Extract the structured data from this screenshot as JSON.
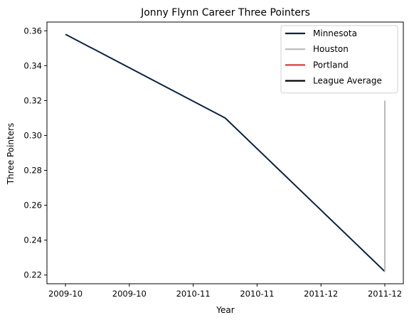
{
  "chart_data": {
    "type": "line",
    "title": "Jonny Flynn Career Three Pointers",
    "xlabel": "Year",
    "ylabel": "Three Pointers",
    "x_ticks": [
      "2009-10",
      "2009-10",
      "2010-11",
      "2010-11",
      "2011-12",
      "2011-12"
    ],
    "x_range": [
      0,
      1
    ],
    "ylim": [
      0.215,
      0.365
    ],
    "y_ticks": [
      "0.22",
      "0.24",
      "0.26",
      "0.28",
      "0.30",
      "0.32",
      "0.34",
      "0.36"
    ],
    "y_tick_values": [
      0.22,
      0.24,
      0.26,
      0.28,
      0.3,
      0.32,
      0.34,
      0.36
    ],
    "grid": false,
    "legend_position": "top-right",
    "series": [
      {
        "name": "Minnesota",
        "color": "#0c2340",
        "points": [
          {
            "x": 0.0,
            "y": 0.358
          },
          {
            "x": 0.5,
            "y": 0.31
          },
          {
            "x": 1.0,
            "y": 0.222
          }
        ]
      },
      {
        "name": "Houston",
        "color": "#bababa",
        "points": [
          {
            "x": 1.0,
            "y": 0.222
          },
          {
            "x": 1.0,
            "y": 0.32
          }
        ]
      },
      {
        "name": "Portland",
        "color": "#e03a3e",
        "points": []
      },
      {
        "name": "League Average",
        "color": "#000000",
        "points": []
      }
    ]
  }
}
